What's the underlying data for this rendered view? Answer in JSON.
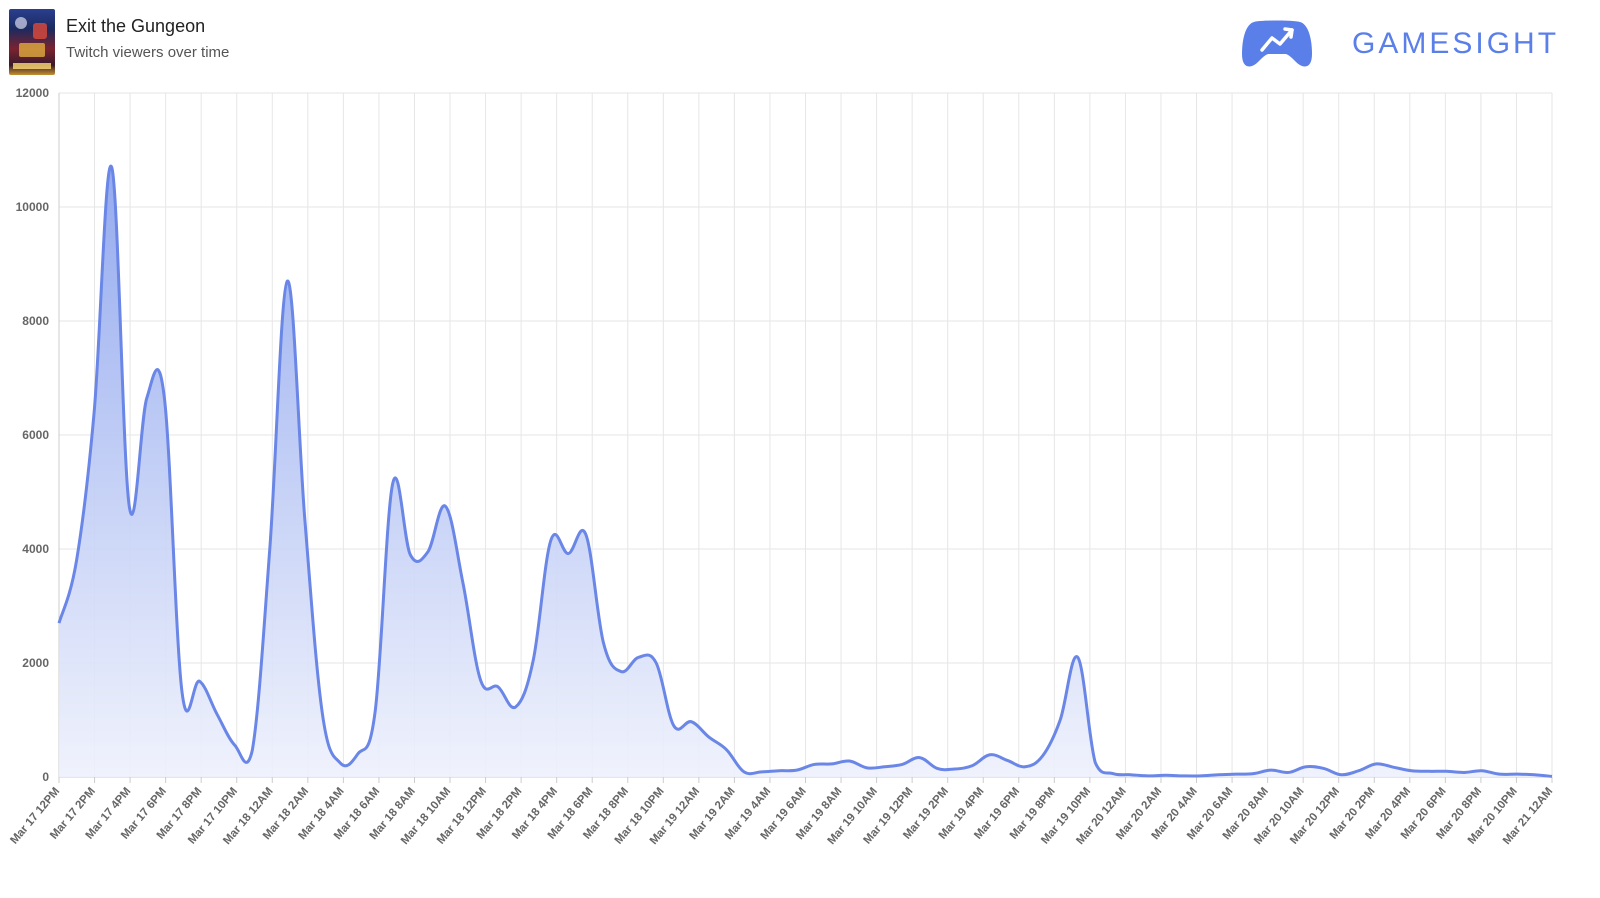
{
  "header": {
    "game_title": "Exit the Gungeon",
    "subtitle": "Twitch viewers over time",
    "brand": "GAMESIGHT"
  },
  "colors": {
    "line": "#6a86e6",
    "fill_top": "#8fa6ee",
    "fill_bottom": "#eef1fc",
    "grid": "#e6e6e6",
    "brand": "#5b7fe8"
  },
  "icons": [
    "gamesight-controller-logo-icon",
    "game-cover-art"
  ],
  "chart_data": {
    "type": "area",
    "title": "",
    "xlabel": "",
    "ylabel": "",
    "ylim": [
      0,
      12000
    ],
    "yticks": [
      0,
      2000,
      4000,
      6000,
      8000,
      10000,
      12000
    ],
    "grid": true,
    "legend": "none",
    "x_ticks": [
      "Mar 17 12PM",
      "Mar 17 2PM",
      "Mar 17 4PM",
      "Mar 17 6PM",
      "Mar 17 8PM",
      "Mar 17 10PM",
      "Mar 18 12AM",
      "Mar 18 2AM",
      "Mar 18 4AM",
      "Mar 18 6AM",
      "Mar 18 8AM",
      "Mar 18 10AM",
      "Mar 18 12PM",
      "Mar 18 2PM",
      "Mar 18 4PM",
      "Mar 18 6PM",
      "Mar 18 8PM",
      "Mar 18 10PM",
      "Mar 19 12AM",
      "Mar 19 2AM",
      "Mar 19 4AM",
      "Mar 19 6AM",
      "Mar 19 8AM",
      "Mar 19 10AM",
      "Mar 19 12PM",
      "Mar 19 2PM",
      "Mar 19 4PM",
      "Mar 19 6PM",
      "Mar 19 8PM",
      "Mar 19 10PM",
      "Mar 20 12AM",
      "Mar 20 2AM",
      "Mar 20 4AM",
      "Mar 20 6AM",
      "Mar 20 8AM",
      "Mar 20 10AM",
      "Mar 20 12PM",
      "Mar 20 2PM",
      "Mar 20 4PM",
      "Mar 20 6PM",
      "Mar 20 8PM",
      "Mar 20 10PM",
      "Mar 21 12AM"
    ],
    "series": [
      {
        "values": [
          2700,
          3800,
          6400,
          10700,
          4750,
          6650,
          6650,
          1500,
          1680,
          1100,
          560,
          460,
          4000,
          8700,
          4500,
          1100,
          250,
          400,
          1150,
          5150,
          3900,
          3950,
          4750,
          3400,
          1700,
          1580,
          1230,
          2050,
          4150,
          3920,
          4250,
          2350,
          1850,
          2100,
          2000,
          900,
          970,
          700,
          480,
          90,
          90,
          110,
          120,
          220,
          230,
          280,
          160,
          180,
          220,
          340,
          150,
          140,
          200,
          390,
          290,
          180,
          370,
          1000,
          2100,
          250,
          60,
          40,
          20,
          30,
          20,
          20,
          40,
          50,
          60,
          120,
          80,
          180,
          150,
          40,
          110,
          230,
          170,
          110,
          100,
          100,
          80,
          110,
          50,
          50,
          40,
          10
        ]
      }
    ]
  }
}
